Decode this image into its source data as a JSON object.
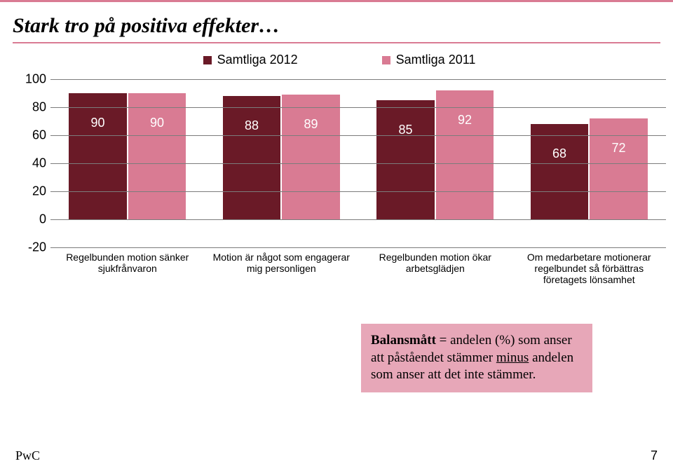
{
  "title": "Stark tro på positiva effekter…",
  "accent_color": "#d97b93",
  "colors": {
    "series_a": "#6a1a27",
    "series_b": "#d97b93",
    "grid": "#7c7c7c",
    "callout_bg": "#e7a7b8",
    "text_dark": "#000000",
    "bar_label": "#ffffff"
  },
  "legend": [
    {
      "label": "Samtliga 2012",
      "color_key": "series_a"
    },
    {
      "label": "Samtliga 2011",
      "color_key": "series_b"
    }
  ],
  "chart": {
    "type": "bar",
    "ylim": [
      -20,
      100
    ],
    "ytick_step": 20,
    "yticks": [
      -20,
      0,
      20,
      40,
      60,
      80,
      100
    ],
    "label_fontsize": 18,
    "cat_fontsize": 14,
    "categories": [
      "Regelbunden motion sänker sjukfrånvaron",
      "Motion är något som engagerar mig personligen",
      "Regelbunden motion ökar arbetsglädjen",
      "Om medarbetare motionerar regelbundet så förbättras företagets lönsamhet"
    ],
    "series": [
      {
        "name": "Samtliga 2012",
        "color_key": "series_a",
        "values": [
          90,
          88,
          85,
          68
        ]
      },
      {
        "name": "Samtliga 2011",
        "color_key": "series_b",
        "values": [
          90,
          89,
          92,
          72
        ]
      }
    ]
  },
  "callout": {
    "lead": "Balansmått",
    "rest_1": " = andelen (%) som anser att påståendet stämmer ",
    "underline": "minus",
    "rest_2": " andelen som anser att det inte stämmer."
  },
  "footer": {
    "brand": "PwC",
    "page": "7"
  }
}
